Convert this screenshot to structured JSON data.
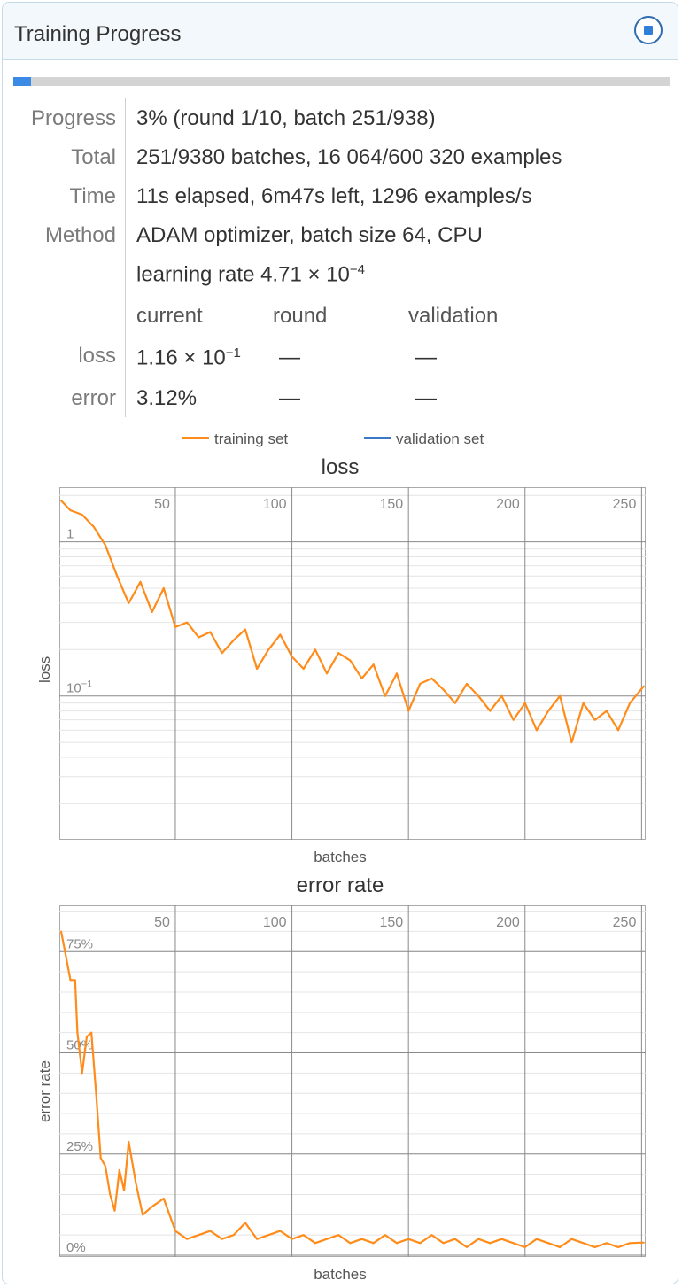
{
  "window": {
    "title": "Training Progress",
    "stop_icon": "stop-icon"
  },
  "progress_bar": {
    "fraction": 0.027,
    "fill_color": "#3b8be6"
  },
  "info": {
    "progress_label": "Progress",
    "progress_value": "3% (round 1/10, batch 251/938)",
    "total_label": "Total",
    "total_value": "251/9380 batches, 16 064/600 320 examples",
    "time_label": "Time",
    "time_value": "11s elapsed, 6m47s left, 1296 examples/s",
    "method_label": "Method",
    "method_value": "ADAM optimizer, batch size 64, CPU",
    "lr_text": "learning rate 4.71 × 10",
    "lr_exp": "−4"
  },
  "metrics": {
    "headers": [
      "current",
      "round",
      "validation"
    ],
    "loss_label": "loss",
    "loss_current_base": "1.16 × 10",
    "loss_current_exp": "−1",
    "loss_round": "—",
    "loss_validation": "—",
    "error_label": "error",
    "error_current": "3.12%",
    "error_round": "—",
    "error_validation": "—"
  },
  "legend": {
    "training": "training set",
    "validation": "validation set",
    "training_color": "#ff8c1a",
    "validation_color": "#3c78c3"
  },
  "chart_data": [
    {
      "type": "line",
      "title": "loss",
      "xlabel": "batches",
      "ylabel": "loss",
      "yscale": "log",
      "xlim": [
        1,
        251
      ],
      "ylim": [
        0.012,
        2.2
      ],
      "xticks": [
        "50",
        "100",
        "150",
        "200",
        "250"
      ],
      "yticks": [
        {
          "value": 1,
          "base": "1",
          "exp": ""
        },
        {
          "value": 0.1,
          "base": "10",
          "exp": "−1"
        }
      ],
      "grid": true,
      "series": [
        {
          "name": "training set",
          "x": [
            1,
            5,
            10,
            15,
            20,
            25,
            30,
            35,
            40,
            45,
            50,
            55,
            60,
            65,
            70,
            75,
            80,
            85,
            90,
            95,
            100,
            105,
            110,
            115,
            120,
            125,
            130,
            135,
            140,
            145,
            150,
            155,
            160,
            165,
            170,
            175,
            180,
            185,
            190,
            195,
            200,
            205,
            210,
            215,
            220,
            225,
            230,
            235,
            240,
            245,
            251
          ],
          "y": [
            1.85,
            1.6,
            1.5,
            1.25,
            0.95,
            0.6,
            0.4,
            0.55,
            0.35,
            0.5,
            0.28,
            0.3,
            0.24,
            0.26,
            0.19,
            0.23,
            0.27,
            0.15,
            0.2,
            0.25,
            0.18,
            0.15,
            0.2,
            0.14,
            0.19,
            0.17,
            0.13,
            0.16,
            0.1,
            0.14,
            0.08,
            0.12,
            0.13,
            0.11,
            0.09,
            0.12,
            0.1,
            0.08,
            0.1,
            0.07,
            0.09,
            0.06,
            0.08,
            0.1,
            0.05,
            0.09,
            0.07,
            0.08,
            0.06,
            0.09,
            0.116
          ]
        },
        {
          "name": "validation set",
          "x": [],
          "y": []
        }
      ]
    },
    {
      "type": "line",
      "title": "error rate",
      "xlabel": "batches",
      "ylabel": "error rate",
      "xlim": [
        1,
        251
      ],
      "ylim": [
        0,
        0.86
      ],
      "xticks": [
        "50",
        "100",
        "150",
        "200",
        "250"
      ],
      "yticks": [
        {
          "value": 0.75,
          "label": "75%"
        },
        {
          "value": 0.5,
          "label": "50%"
        },
        {
          "value": 0.25,
          "label": "25%"
        },
        {
          "value": 0,
          "label": "0%"
        }
      ],
      "grid": true,
      "series": [
        {
          "name": "training set",
          "x": [
            1,
            3,
            5,
            7,
            8,
            10,
            12,
            14,
            16,
            18,
            20,
            22,
            24,
            26,
            28,
            30,
            33,
            36,
            40,
            45,
            50,
            55,
            60,
            65,
            70,
            75,
            80,
            85,
            90,
            95,
            100,
            105,
            110,
            115,
            120,
            125,
            130,
            135,
            140,
            145,
            150,
            155,
            160,
            165,
            170,
            175,
            180,
            185,
            190,
            195,
            200,
            205,
            210,
            215,
            220,
            225,
            230,
            235,
            240,
            245,
            251
          ],
          "y": [
            0.8,
            0.74,
            0.68,
            0.68,
            0.55,
            0.45,
            0.54,
            0.55,
            0.4,
            0.24,
            0.22,
            0.15,
            0.11,
            0.21,
            0.16,
            0.28,
            0.18,
            0.1,
            0.12,
            0.14,
            0.06,
            0.04,
            0.05,
            0.06,
            0.04,
            0.05,
            0.08,
            0.04,
            0.05,
            0.06,
            0.04,
            0.05,
            0.03,
            0.04,
            0.05,
            0.03,
            0.04,
            0.03,
            0.05,
            0.03,
            0.04,
            0.03,
            0.05,
            0.03,
            0.04,
            0.02,
            0.04,
            0.03,
            0.04,
            0.03,
            0.02,
            0.04,
            0.03,
            0.02,
            0.04,
            0.03,
            0.02,
            0.03,
            0.02,
            0.03,
            0.0312
          ]
        },
        {
          "name": "validation set",
          "x": [],
          "y": []
        }
      ]
    }
  ]
}
